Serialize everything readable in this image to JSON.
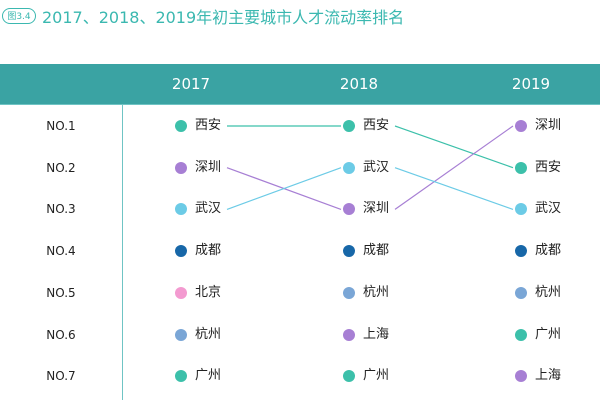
{
  "figure_label": "图3.4",
  "chart_data": {
    "type": "table",
    "title": "2017、2018、2019年初主要城市人才流动率排名",
    "ranks": [
      "NO.1",
      "NO.2",
      "NO.3",
      "NO.4",
      "NO.5",
      "NO.6",
      "NO.7"
    ],
    "years": [
      "2017",
      "2018",
      "2019"
    ],
    "columns": [
      [
        "西安",
        "深圳",
        "武汉",
        "成都",
        "北京",
        "杭州",
        "广州"
      ],
      [
        "西安",
        "武汉",
        "深圳",
        "成都",
        "杭州",
        "上海",
        "广州"
      ],
      [
        "深圳",
        "西安",
        "武汉",
        "成都",
        "杭州",
        "广州",
        "上海"
      ]
    ],
    "connected_cities": [
      "西安",
      "深圳",
      "武汉"
    ],
    "city_colors": {
      "西安": "#3cc0aa",
      "深圳": "#a77fd4",
      "武汉": "#6ccbe6",
      "成都": "#1767a8",
      "北京": "#f39ad0",
      "杭州": "#7aa6d6",
      "上海": "#a77fd4",
      "广州": "#3cc0aa"
    },
    "header_color": "#3aa3a3"
  }
}
